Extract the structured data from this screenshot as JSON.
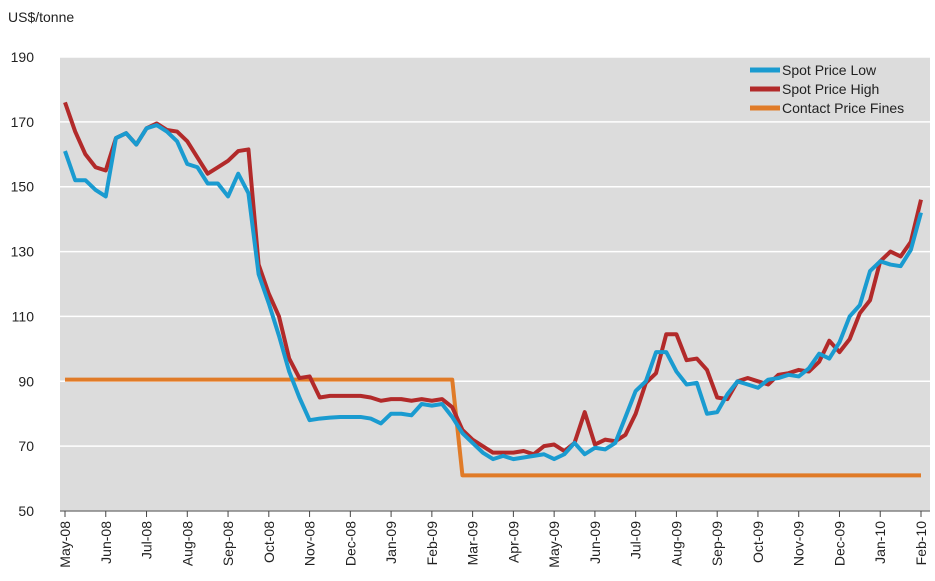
{
  "chart_data": {
    "type": "line",
    "y_label": "US$/tonne",
    "categories": [
      "May-08",
      null,
      null,
      null,
      "Jun-08",
      null,
      null,
      null,
      "Jul-08",
      null,
      null,
      null,
      "Aug-08",
      null,
      null,
      null,
      "Sep-08",
      null,
      null,
      null,
      "Oct-08",
      null,
      null,
      null,
      "Nov-08",
      null,
      null,
      null,
      "Dec-08",
      null,
      null,
      null,
      "Jan-09",
      null,
      null,
      null,
      "Feb-09",
      null,
      null,
      null,
      "Mar-09",
      null,
      null,
      null,
      "Apr-09",
      null,
      null,
      null,
      "May-09",
      null,
      null,
      null,
      "Jun-09",
      null,
      null,
      null,
      "Jul-09",
      null,
      null,
      null,
      "Aug-09",
      null,
      null,
      null,
      "Sep-09",
      null,
      null,
      null,
      "Oct-09",
      null,
      null,
      null,
      "Nov-09",
      null,
      null,
      null,
      "Dec-09",
      null,
      null,
      null,
      "Jan-10",
      null,
      null,
      null,
      "Feb-10"
    ],
    "series": [
      {
        "name": "Spot Price Low",
        "color": "#1a9bd0",
        "values": [
          161,
          152,
          152,
          149,
          147,
          165,
          166.5,
          163,
          168,
          169,
          167,
          164,
          157,
          156,
          151,
          151,
          147,
          154,
          148,
          123,
          114,
          104,
          93,
          85,
          78,
          78.5,
          78.8,
          79,
          79,
          79,
          78.5,
          77,
          80,
          80,
          79.5,
          83,
          82.5,
          83,
          79,
          74,
          71,
          68,
          66,
          67,
          66,
          66.5,
          67,
          67.5,
          66,
          67.5,
          71,
          67.5,
          69.5,
          69,
          71,
          79,
          87,
          90,
          99,
          99,
          93,
          89,
          89.5,
          80,
          80.5,
          86,
          90,
          89,
          88,
          90.5,
          91,
          92,
          91.5,
          94,
          98.5,
          97,
          102,
          110,
          113.5,
          124,
          127,
          126,
          125.5,
          130.5,
          142
        ]
      },
      {
        "name": "Spot Price High",
        "color": "#b22a2a",
        "values": [
          176,
          167,
          160,
          156,
          155,
          165,
          166.5,
          163,
          168,
          169.5,
          167.5,
          167,
          164,
          159,
          154,
          156,
          158,
          161,
          161.5,
          126,
          117,
          110,
          97,
          91,
          91.5,
          85,
          85.5,
          85.5,
          85.5,
          85.5,
          85,
          84,
          84.5,
          84.5,
          84,
          84.5,
          84,
          84.5,
          82,
          75,
          72,
          70,
          68,
          68,
          68,
          68.5,
          67.5,
          70,
          70.5,
          68.5,
          71,
          80.5,
          70.5,
          72,
          71.5,
          73.5,
          80,
          89.5,
          92.5,
          104.5,
          104.5,
          96.5,
          97,
          93.5,
          85,
          84.5,
          90,
          91,
          90,
          89,
          92,
          92.5,
          93.5,
          93,
          96,
          102.5,
          99,
          103,
          111,
          115,
          127,
          130,
          128.5,
          133,
          146
        ]
      },
      {
        "name": "Contact Price Fines",
        "color": "#e07b28",
        "values": [
          90.5,
          90.5,
          90.5,
          90.5,
          90.5,
          90.5,
          90.5,
          90.5,
          90.5,
          90.5,
          90.5,
          90.5,
          90.5,
          90.5,
          90.5,
          90.5,
          90.5,
          90.5,
          90.5,
          90.5,
          90.5,
          90.5,
          90.5,
          90.5,
          90.5,
          90.5,
          90.5,
          90.5,
          90.5,
          90.5,
          90.5,
          90.5,
          90.5,
          90.5,
          90.5,
          90.5,
          90.5,
          90.5,
          90.5,
          61,
          61,
          61,
          61,
          61,
          61,
          61,
          61,
          61,
          61,
          61,
          61,
          61,
          61,
          61,
          61,
          61,
          61,
          61,
          61,
          61,
          61,
          61,
          61,
          61,
          61,
          61,
          61,
          61,
          61,
          61,
          61,
          61,
          61,
          61,
          61,
          61,
          61,
          61,
          61,
          61,
          61,
          61,
          61,
          61,
          61
        ]
      }
    ],
    "ylim": [
      50,
      190
    ],
    "yticks": [
      50,
      70,
      90,
      110,
      130,
      150,
      170,
      190
    ],
    "grid": true,
    "legend": "top-right"
  }
}
